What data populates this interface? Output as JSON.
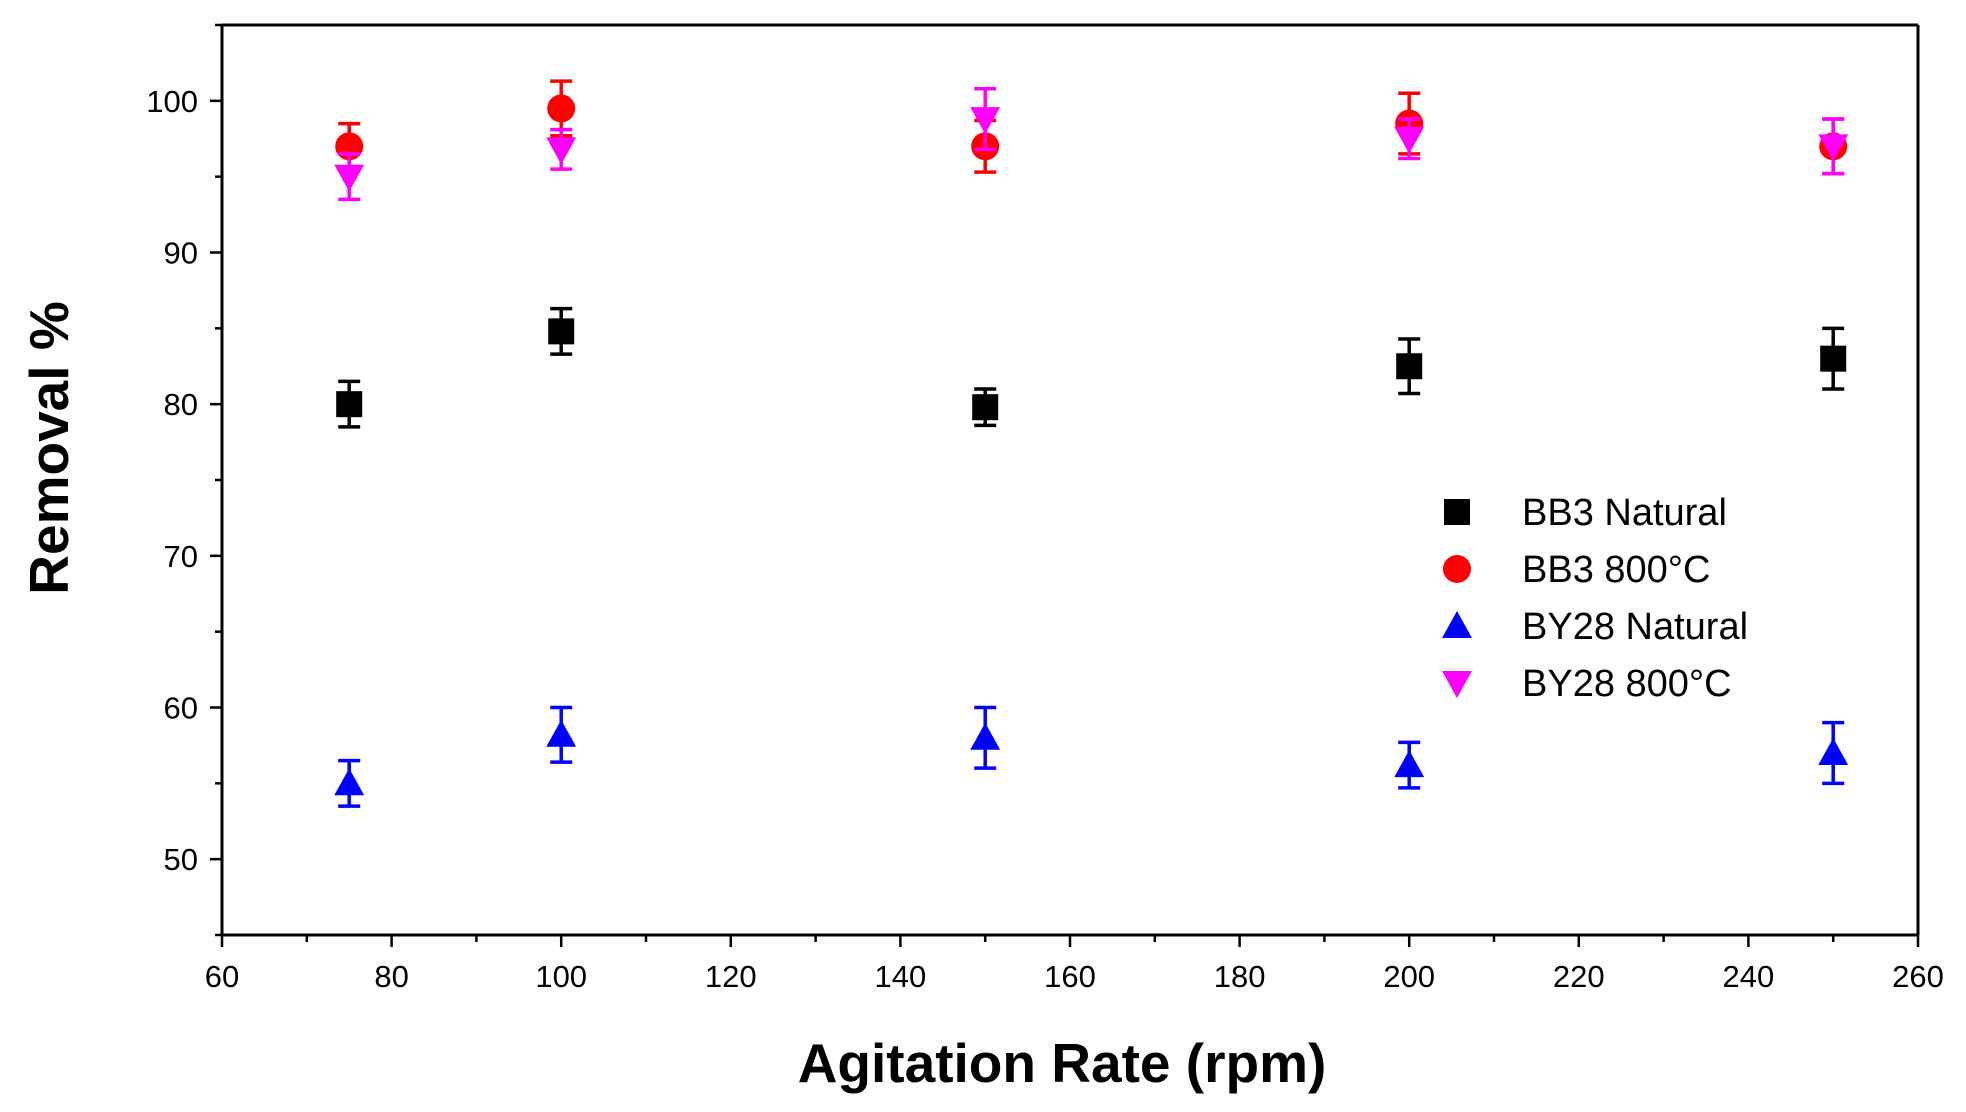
{
  "chart_data": {
    "type": "scatter",
    "title": "",
    "xlabel": "Agitation Rate (rpm)",
    "ylabel": "Removal %",
    "xlim": [
      60,
      260
    ],
    "ylim": [
      45,
      105
    ],
    "x_ticks": [
      60,
      80,
      100,
      120,
      140,
      160,
      180,
      200,
      220,
      240,
      260
    ],
    "y_ticks": [
      50,
      60,
      70,
      80,
      90,
      100
    ],
    "x_tick_labels": [
      "60",
      "80",
      "100",
      "120",
      "140",
      "160",
      "180",
      "200",
      "220",
      "240",
      "260"
    ],
    "y_tick_labels": [
      "50",
      "60",
      "70",
      "80",
      "90",
      "100"
    ],
    "grid": false,
    "legend_position": "right",
    "series": [
      {
        "name": "BB3   Natural",
        "marker": "square",
        "color": "#000000",
        "points": [
          {
            "x": 75,
            "y": 80.0,
            "err": 1.5
          },
          {
            "x": 100,
            "y": 84.8,
            "err": 1.5
          },
          {
            "x": 150,
            "y": 79.8,
            "err": 1.2
          },
          {
            "x": 200,
            "y": 82.5,
            "err": 1.8
          },
          {
            "x": 250,
            "y": 83.0,
            "err": 2.0
          }
        ]
      },
      {
        "name": "BB3   800°C",
        "marker": "circle",
        "color": "#ff0000",
        "points": [
          {
            "x": 75,
            "y": 97.0,
            "err": 1.5
          },
          {
            "x": 100,
            "y": 99.5,
            "err": 1.8
          },
          {
            "x": 150,
            "y": 97.0,
            "err": 1.7
          },
          {
            "x": 200,
            "y": 98.5,
            "err": 2.0
          },
          {
            "x": 250,
            "y": 97.0,
            "err": 1.8
          }
        ]
      },
      {
        "name": "BY28 Natural",
        "marker": "triangle-up",
        "color": "#0000ff",
        "points": [
          {
            "x": 75,
            "y": 55.0,
            "err": 1.5
          },
          {
            "x": 100,
            "y": 58.2,
            "err": 1.8
          },
          {
            "x": 150,
            "y": 58.0,
            "err": 2.0
          },
          {
            "x": 200,
            "y": 56.2,
            "err": 1.5
          },
          {
            "x": 250,
            "y": 57.0,
            "err": 2.0
          }
        ]
      },
      {
        "name": "BY28 800°C",
        "marker": "triangle-down",
        "color": "#ff00ff",
        "points": [
          {
            "x": 75,
            "y": 95.0,
            "err": 1.5
          },
          {
            "x": 100,
            "y": 96.8,
            "err": 1.3
          },
          {
            "x": 150,
            "y": 98.8,
            "err": 2.0
          },
          {
            "x": 200,
            "y": 97.5,
            "err": 1.3
          },
          {
            "x": 250,
            "y": 97.0,
            "err": 1.8
          }
        ]
      }
    ]
  }
}
